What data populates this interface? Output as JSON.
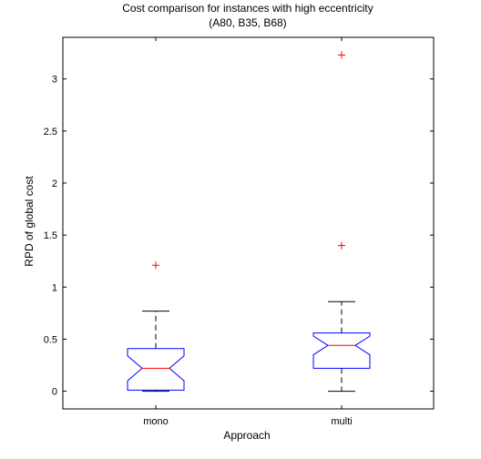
{
  "chart_data": {
    "type": "boxplot",
    "title_lines": [
      "Cost comparison for instances with high eccentricity",
      "(A80, B35, B68)"
    ],
    "xlabel": "Approach",
    "ylabel": "RPD of global cost",
    "ylim": [
      -0.17,
      3.4
    ],
    "yticks": [
      0,
      0.5,
      1,
      1.5,
      2,
      2.5,
      3
    ],
    "ytick_labels": [
      "0",
      "0.5",
      "1",
      "1.5",
      "2",
      "2.5",
      "3"
    ],
    "categories": [
      "mono",
      "multi"
    ],
    "boxes": [
      {
        "category": "mono",
        "whisker_low": 0.0,
        "q1": 0.01,
        "median": 0.22,
        "q3": 0.41,
        "whisker_high": 0.77,
        "notch_low": 0.1,
        "notch_high": 0.34,
        "outliers": [
          1.21
        ]
      },
      {
        "category": "multi",
        "whisker_low": 0.0,
        "q1": 0.22,
        "median": 0.44,
        "q3": 0.56,
        "whisker_high": 0.86,
        "notch_low": 0.35,
        "notch_high": 0.53,
        "outliers": [
          1.4,
          3.23
        ]
      }
    ],
    "grid": false,
    "colors": {
      "box": "#0000ff",
      "median": "#ff0000",
      "whisker": "#000000",
      "outlier": "#ff0000",
      "axes": "#000000"
    }
  }
}
